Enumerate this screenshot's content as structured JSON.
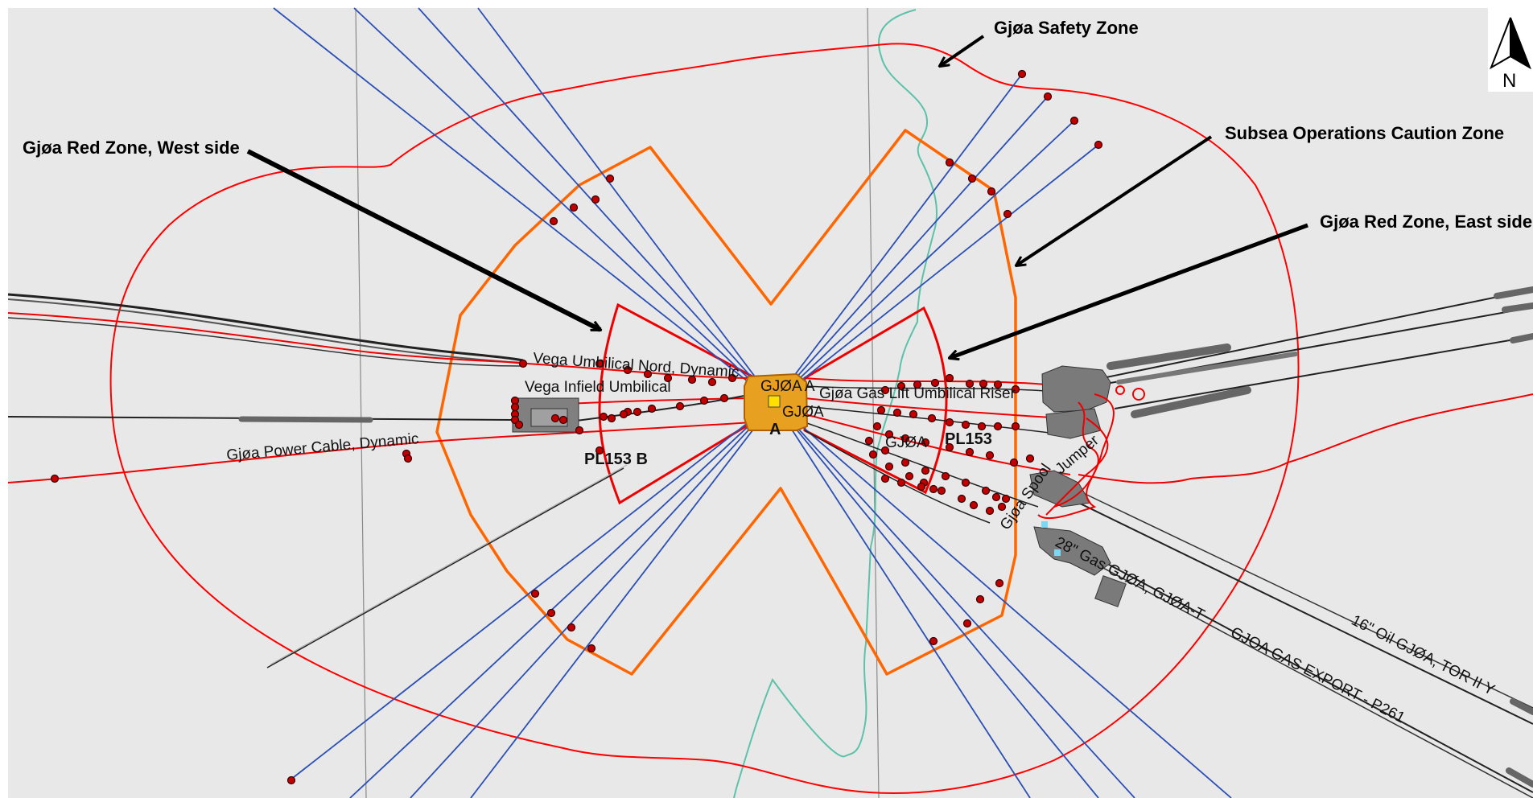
{
  "callouts": {
    "safety_zone": "Gjøa Safety Zone",
    "red_zone_west": "Gjøa Red Zone, West side",
    "subsea_caution": "Subsea Operations Caution Zone",
    "red_zone_east": "Gjøa Red Zone, East side"
  },
  "labels": {
    "vega_umbilical_nord": "Vega Umbilical Nord, Dynamic",
    "vega_infield": "Vega Infield Umbilical",
    "power_cable": "Gjøa Power Cable, Dynamic",
    "pl153b": "PL153 B",
    "pl153": "PL153",
    "gjoa_a_1": "GJØA A",
    "gjoa_a_2": "GJØA",
    "gjoa_a_3": "GJØA",
    "platform_a": "A",
    "gas_lift": "Gjøa Gas Lift Umbilical Riser",
    "jumper": "Jumper",
    "gjoa_spool": "Gjøa Spool",
    "gas_28": "28\" Gas GJØA, GJØA-T",
    "oil_16": "16\" Oil GJØA, TOR II Y",
    "gas_export": "GJOA GAS EXPORT - P261"
  },
  "compass": {
    "label": "N"
  },
  "colors": {
    "background": "#e8e8e8",
    "safety_zone": "#ff0000",
    "caution_zone": "#ff6600",
    "red_zone": "#ee0000",
    "anchor_lines": "#2b4fb5",
    "boundary": "#5cc2a8",
    "platform": "#e8a020"
  }
}
